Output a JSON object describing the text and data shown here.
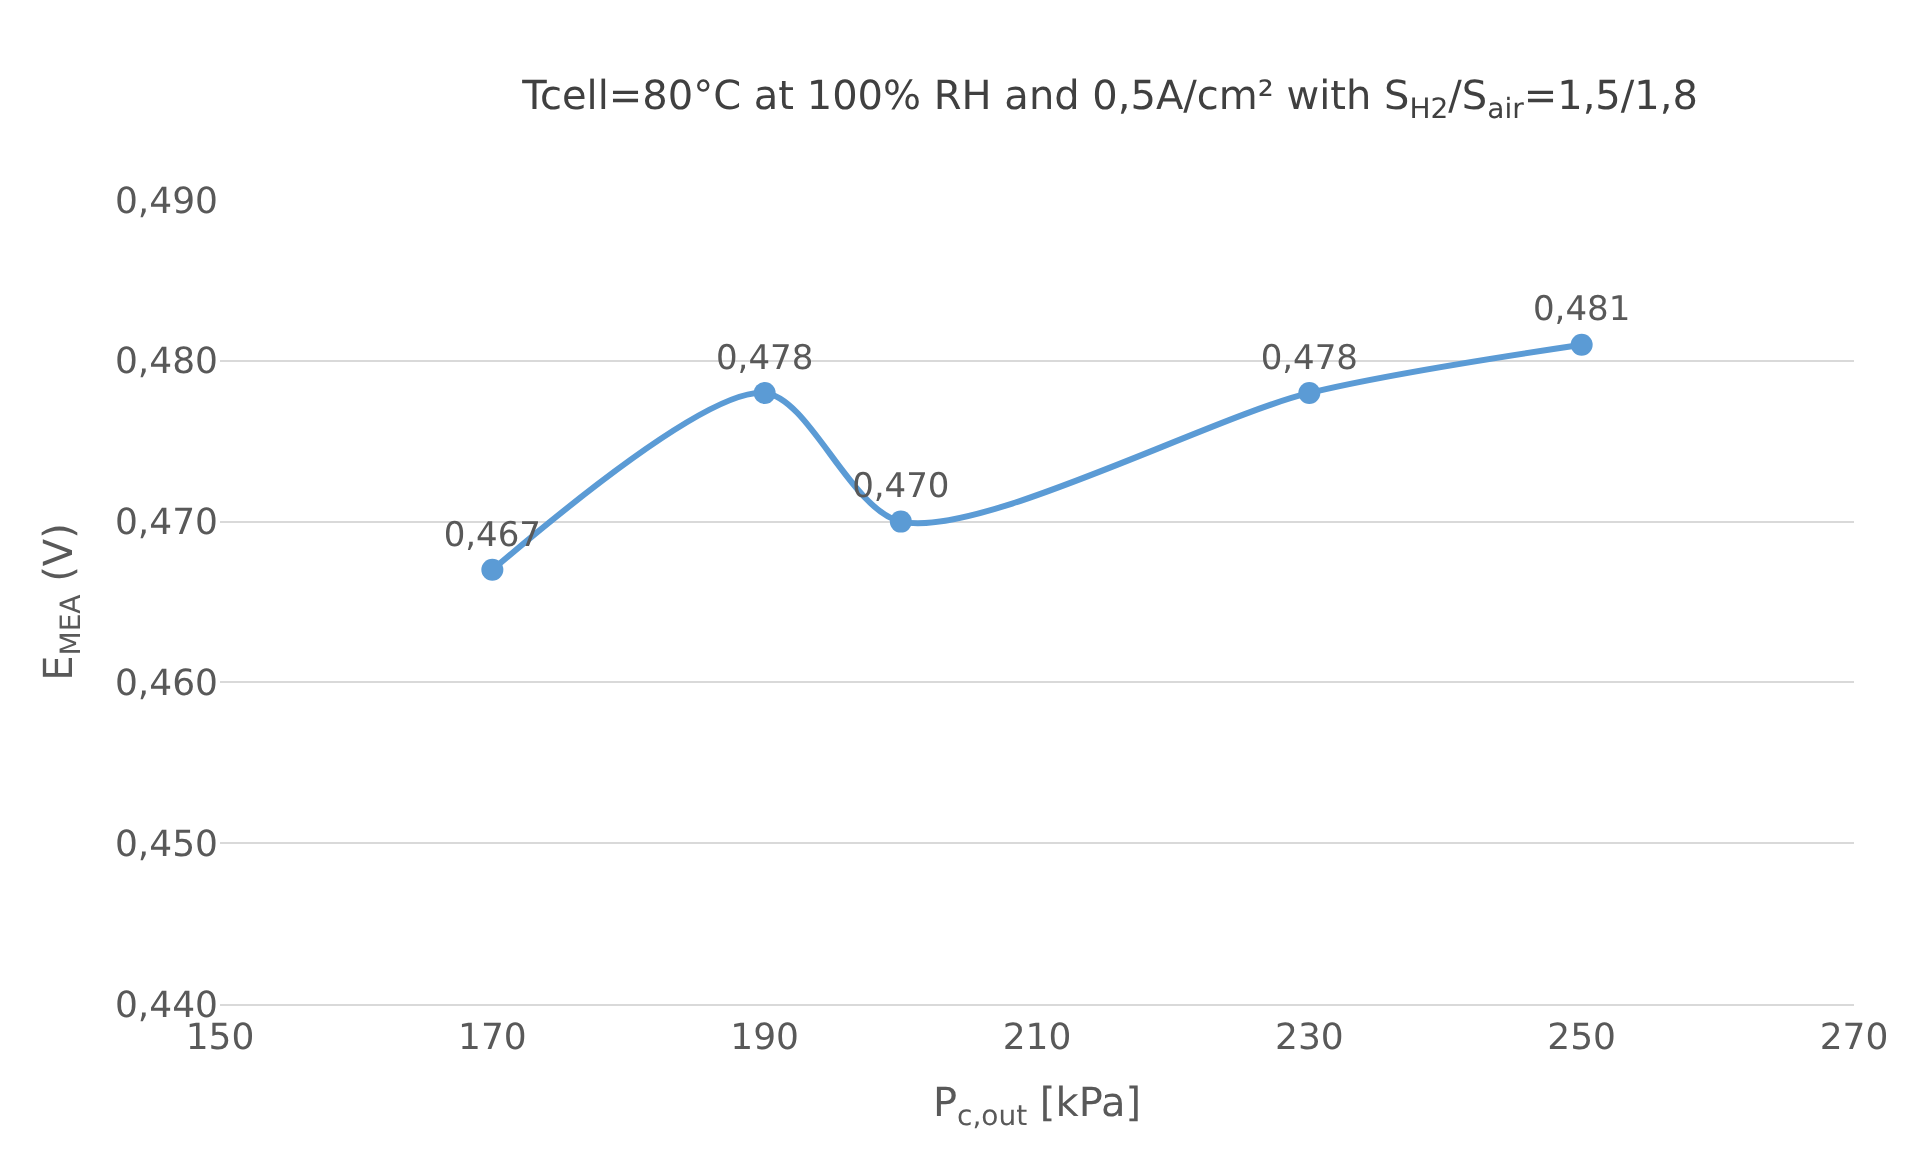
{
  "chart_data": {
    "type": "line",
    "title": "Tcell=80°C at 100% RH and 0,5A/cm² with S$_{H2}$/S$_{air}$=1,5/1,8",
    "xlabel": "P$_{c,out}$ [kPa]",
    "ylabel": "E$_{MEA}$ (V)",
    "x": [
      170,
      190,
      200,
      230,
      250
    ],
    "series": [
      {
        "color": "#5b9bd5",
        "values": [
          0.467,
          0.478,
          0.47,
          0.478,
          0.481
        ],
        "value_labels": [
          "0,467",
          "0,478",
          "0,470",
          "0,478",
          "0,481"
        ]
      }
    ],
    "xlim": [
      150,
      270
    ],
    "xticks": [
      150,
      170,
      190,
      210,
      230,
      250,
      270
    ],
    "ylim": [
      0.44,
      0.49
    ],
    "yticks": [
      {
        "value": 0.44,
        "label": "0,440"
      },
      {
        "value": 0.45,
        "label": "0,450"
      },
      {
        "value": 0.46,
        "label": "0,460"
      },
      {
        "value": 0.47,
        "label": "0,470"
      },
      {
        "value": 0.48,
        "label": "0,480"
      },
      {
        "value": 0.49,
        "label": "0,490"
      }
    ],
    "grid": "y",
    "legend": false,
    "marker": "circle",
    "line_style": "solid"
  }
}
